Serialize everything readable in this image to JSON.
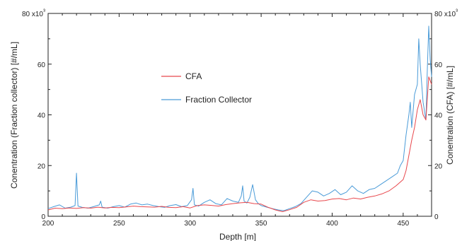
{
  "chart_data": {
    "type": "line",
    "xlabel": "Depth [m]",
    "ylabel_left": "Conentration (Fraction collector) [#/mL]",
    "ylabel_right": "Conentration (CFA) [#/mL]",
    "xlim": [
      200,
      470
    ],
    "ylim": [
      0,
      80000
    ],
    "x_ticks": [
      "200",
      "250",
      "300",
      "350",
      "400",
      "450"
    ],
    "y_ticks": [
      "0",
      "20",
      "40",
      "60",
      "80 x10³"
    ],
    "y_ticks_right": [
      "0",
      "20",
      "40",
      "60",
      "80 x10³"
    ],
    "legend_position": "upper-left-center",
    "colors": {
      "CFA": "#e8474c",
      "Fraction Collector": "#4a9bd8"
    },
    "series": [
      {
        "name": "CFA",
        "x": [
          200,
          205,
          210,
          215,
          220,
          225,
          230,
          235,
          240,
          245,
          250,
          255,
          260,
          265,
          270,
          275,
          280,
          285,
          290,
          295,
          300,
          305,
          310,
          315,
          320,
          325,
          330,
          335,
          340,
          345,
          350,
          355,
          360,
          365,
          370,
          375,
          380,
          385,
          390,
          395,
          400,
          405,
          410,
          415,
          420,
          425,
          430,
          435,
          440,
          445,
          450,
          452,
          454,
          456,
          458,
          460,
          462,
          464,
          466,
          468,
          470
        ],
        "y": [
          2500,
          3200,
          3000,
          3300,
          3100,
          3400,
          3200,
          3600,
          3300,
          3500,
          3400,
          3700,
          4000,
          3800,
          3700,
          3600,
          3900,
          3500,
          3400,
          3800,
          3300,
          4200,
          4500,
          4300,
          4000,
          4600,
          5000,
          5300,
          5500,
          5000,
          4800,
          3500,
          2500,
          1800,
          2600,
          3500,
          5500,
          6500,
          6000,
          6200,
          6800,
          7000,
          6500,
          7200,
          6800,
          7500,
          8000,
          8800,
          10000,
          12000,
          14500,
          18000,
          24000,
          30000,
          35000,
          42000,
          46000,
          40000,
          38000,
          55000,
          52000
        ]
      },
      {
        "name": "Fraction Collector",
        "x": [
          200,
          204,
          208,
          212,
          216,
          219,
          220,
          221,
          224,
          228,
          232,
          236,
          237,
          238,
          242,
          246,
          250,
          254,
          258,
          262,
          266,
          270,
          274,
          278,
          282,
          286,
          290,
          294,
          298,
          301,
          302,
          303,
          306,
          310,
          314,
          318,
          322,
          326,
          330,
          334,
          336,
          337,
          338,
          340,
          342,
          344,
          346,
          348,
          350,
          354,
          358,
          362,
          366,
          370,
          374,
          378,
          382,
          386,
          390,
          394,
          398,
          402,
          406,
          410,
          414,
          418,
          422,
          426,
          430,
          434,
          438,
          442,
          446,
          448,
          450,
          452,
          454,
          455,
          456,
          458,
          460,
          461,
          462,
          464,
          466,
          467,
          468,
          469,
          470
        ],
        "y": [
          3000,
          3800,
          4500,
          3200,
          3600,
          4200,
          17000,
          4000,
          3500,
          3200,
          3800,
          4500,
          6000,
          3600,
          3200,
          3800,
          4200,
          3600,
          4800,
          5200,
          4500,
          4800,
          4200,
          3800,
          3500,
          4200,
          4600,
          3800,
          4200,
          6500,
          11000,
          4500,
          4000,
          5500,
          6500,
          5000,
          4500,
          7000,
          6000,
          5500,
          8000,
          12000,
          6000,
          5200,
          7500,
          12500,
          6500,
          5000,
          4200,
          3600,
          3000,
          2500,
          2200,
          3000,
          3800,
          5000,
          7500,
          10000,
          9500,
          8000,
          9000,
          10500,
          8500,
          9500,
          12000,
          10000,
          9000,
          10500,
          11000,
          12500,
          14000,
          15500,
          17000,
          20000,
          22000,
          32000,
          40000,
          45000,
          35000,
          48000,
          52000,
          70000,
          60000,
          45000,
          38000,
          58000,
          75000,
          62000,
          55000
        ]
      }
    ]
  }
}
